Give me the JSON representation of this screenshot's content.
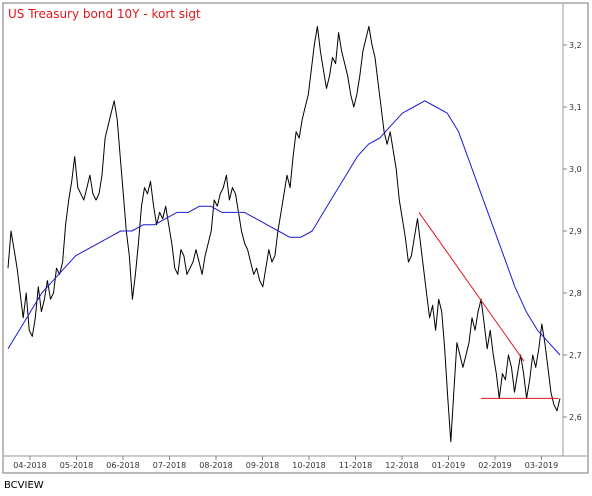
{
  "chart_data": {
    "type": "line",
    "title": "US Treasury bond 10Y - kort sigt",
    "footer": "BCVIEW",
    "xlabel": "",
    "ylabel": "",
    "x_ticks": [
      "04-2018",
      "05-2018",
      "06-2018",
      "07-2018",
      "08-2018",
      "09-2018",
      "10-2018",
      "11-2018",
      "12-2018",
      "01-2019",
      "02-2019",
      "03-2019"
    ],
    "y_ticks": [
      "2,6",
      "2,7",
      "2,8",
      "2,9",
      "3,0",
      "3,1",
      "3,2"
    ],
    "ylim": [
      2.545,
      3.245
    ],
    "grid": false,
    "colors": {
      "price": "#000000",
      "moving_average": "#1a1ad6",
      "trendline": "#e0161b",
      "title": "#e0161b"
    },
    "series": [
      {
        "values": [
          2.84,
          2.9,
          2.87,
          2.84,
          2.8,
          2.76,
          2.8,
          2.74,
          2.73,
          2.76,
          2.81,
          2.77,
          2.79,
          2.82,
          2.79,
          2.8,
          2.84,
          2.83,
          2.85,
          2.91,
          2.95,
          2.98,
          3.02,
          2.97,
          2.96,
          2.95,
          2.97,
          2.99,
          2.96,
          2.95,
          2.96,
          2.99,
          3.05,
          3.07,
          3.09,
          3.11,
          3.08,
          3.02,
          2.96,
          2.9,
          2.86,
          2.79,
          2.83,
          2.88,
          2.94,
          2.97,
          2.96,
          2.98,
          2.94,
          2.91,
          2.93,
          2.92,
          2.94,
          2.91,
          2.88,
          2.84,
          2.83,
          2.87,
          2.86,
          2.83,
          2.84,
          2.85,
          2.87,
          2.85,
          2.83,
          2.86,
          2.88,
          2.9,
          2.95,
          2.94,
          2.96,
          2.97,
          2.99,
          2.95,
          2.97,
          2.96,
          2.93,
          2.9,
          2.88,
          2.87,
          2.85,
          2.83,
          2.84,
          2.82,
          2.81,
          2.84,
          2.87,
          2.85,
          2.86,
          2.9,
          2.93,
          2.96,
          2.99,
          2.97,
          3.02,
          3.06,
          3.05,
          3.08,
          3.1,
          3.12,
          3.16,
          3.2,
          3.23,
          3.19,
          3.16,
          3.13,
          3.15,
          3.18,
          3.17,
          3.22,
          3.19,
          3.17,
          3.15,
          3.12,
          3.1,
          3.12,
          3.15,
          3.19,
          3.21,
          3.23,
          3.2,
          3.18,
          3.14,
          3.1,
          3.06,
          3.04,
          3.06,
          3.03,
          3.0,
          2.95,
          2.92,
          2.89,
          2.85,
          2.86,
          2.89,
          2.92,
          2.88,
          2.84,
          2.8,
          2.76,
          2.78,
          2.74,
          2.79,
          2.77,
          2.71,
          2.63,
          2.56,
          2.64,
          2.72,
          2.7,
          2.68,
          2.7,
          2.72,
          2.76,
          2.74,
          2.77,
          2.79,
          2.75,
          2.71,
          2.74,
          2.7,
          2.67,
          2.63,
          2.67,
          2.66,
          2.7,
          2.68,
          2.64,
          2.67,
          2.7,
          2.67,
          2.63,
          2.66,
          2.7,
          2.68,
          2.71,
          2.75,
          2.72,
          2.68,
          2.64,
          2.62,
          2.61,
          2.63
        ]
      },
      {
        "values": [
          2.71,
          2.74,
          2.77,
          2.8,
          2.82,
          2.84,
          2.86,
          2.87,
          2.88,
          2.89,
          2.9,
          2.9,
          2.91,
          2.91,
          2.92,
          2.93,
          2.93,
          2.94,
          2.94,
          2.93,
          2.93,
          2.93,
          2.92,
          2.91,
          2.9,
          2.89,
          2.89,
          2.9,
          2.93,
          2.96,
          2.99,
          3.02,
          3.04,
          3.05,
          3.07,
          3.09,
          3.1,
          3.11,
          3.1,
          3.09,
          3.06,
          3.01,
          2.96,
          2.91,
          2.86,
          2.81,
          2.77,
          2.74,
          2.72,
          2.7
        ]
      }
    ],
    "trendlines": [
      {
        "start": [
          "12-2018",
          2.93
        ],
        "end": [
          "02-2019",
          2.69
        ]
      },
      {
        "start": [
          "02-2019",
          2.63
        ],
        "end": [
          "03-2019",
          2.63
        ]
      }
    ]
  }
}
